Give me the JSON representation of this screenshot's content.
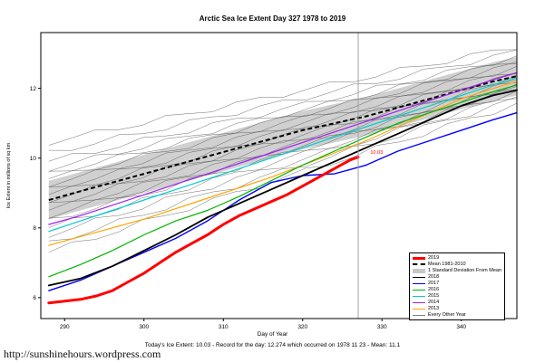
{
  "page": {
    "url_text": "http://sunshinehours.wordpress.com",
    "footer": "Today's Ice Extent: 10.03 - Record for the day: 12.274 which occurred on 1978 11 23 - Mean: 11.1"
  },
  "chart_data": {
    "type": "line",
    "title": "Arctic Sea Ice Extent Day 327 1978 to 2019",
    "xlabel": "Day of Year",
    "ylabel": "Ice Extent in millions of sq km",
    "xlim": [
      287,
      347
    ],
    "ylim": [
      5.4,
      13.6
    ],
    "x_ticks": [
      290,
      300,
      310,
      320,
      330,
      340
    ],
    "y_ticks": [
      6,
      8,
      10,
      12
    ],
    "grid": false,
    "legend_position": "bottom-right",
    "vline_x": 327,
    "annotation": {
      "text": "10.03",
      "x": 328.3,
      "y": 10.15,
      "color": "#FF0000"
    },
    "mean": {
      "label": "Mean 1981-2010",
      "color": "#000000",
      "x": [
        288,
        292,
        296,
        300,
        304,
        308,
        312,
        316,
        320,
        324,
        328,
        332,
        336,
        340,
        344,
        347
      ],
      "y": [
        8.8,
        9.05,
        9.3,
        9.55,
        9.8,
        10.05,
        10.3,
        10.55,
        10.8,
        11.0,
        11.2,
        11.45,
        11.7,
        11.95,
        12.2,
        12.35
      ]
    },
    "sd_band": {
      "label": "1 Standard Deviation From Mean",
      "halfwidth": 0.55,
      "color": "#C8C8C8"
    },
    "series": [
      {
        "name": "2013",
        "color": "#FFA500",
        "width": 1.2,
        "x": [
          288,
          292,
          296,
          300,
          304,
          308,
          312,
          316,
          320,
          324,
          328,
          332,
          336,
          340,
          344,
          347
        ],
        "y": [
          7.5,
          7.75,
          8.0,
          8.25,
          8.55,
          8.85,
          9.15,
          9.45,
          9.8,
          10.15,
          10.5,
          10.9,
          11.3,
          11.7,
          12.0,
          12.2
        ]
      },
      {
        "name": "2014",
        "color": "#A020F0",
        "width": 1.2,
        "x": [
          288,
          292,
          296,
          300,
          304,
          308,
          312,
          316,
          320,
          324,
          328,
          332,
          336,
          340,
          344,
          347
        ],
        "y": [
          8.1,
          8.35,
          8.65,
          8.95,
          9.25,
          9.55,
          9.85,
          10.15,
          10.45,
          10.75,
          11.05,
          11.35,
          11.65,
          11.95,
          12.25,
          12.45
        ]
      },
      {
        "name": "2015",
        "color": "#00CDCD",
        "width": 1.2,
        "x": [
          288,
          292,
          296,
          300,
          304,
          308,
          312,
          316,
          320,
          324,
          328,
          332,
          336,
          340,
          344,
          347
        ],
        "y": [
          7.9,
          8.2,
          8.5,
          8.8,
          9.1,
          9.4,
          9.7,
          10.0,
          10.3,
          10.6,
          10.9,
          11.2,
          11.5,
          11.8,
          12.1,
          12.3
        ]
      },
      {
        "name": "2016",
        "color": "#00B400",
        "width": 1.2,
        "x": [
          288,
          292,
          296,
          300,
          304,
          308,
          312,
          316,
          320,
          324,
          328,
          332,
          336,
          340,
          344,
          347
        ],
        "y": [
          6.6,
          6.95,
          7.35,
          7.8,
          8.2,
          8.5,
          8.9,
          9.35,
          9.8,
          10.2,
          10.6,
          11.0,
          11.3,
          11.6,
          11.9,
          12.1
        ]
      },
      {
        "name": "2017",
        "color": "#0000FF",
        "width": 1.4,
        "x": [
          288,
          292,
          296,
          300,
          304,
          308,
          312,
          316,
          320,
          324,
          328,
          332,
          336,
          340,
          344,
          347
        ],
        "y": [
          6.2,
          6.5,
          6.9,
          7.3,
          7.7,
          8.2,
          8.8,
          9.3,
          9.5,
          9.55,
          9.8,
          10.2,
          10.5,
          10.8,
          11.1,
          11.3
        ]
      },
      {
        "name": "2018",
        "color": "#000000",
        "width": 1.8,
        "x": [
          288,
          292,
          296,
          300,
          304,
          308,
          312,
          316,
          320,
          324,
          328,
          332,
          336,
          340,
          344,
          347
        ],
        "y": [
          6.35,
          6.55,
          6.9,
          7.35,
          7.8,
          8.3,
          8.7,
          9.1,
          9.5,
          9.9,
          10.3,
          10.7,
          11.1,
          11.5,
          11.8,
          11.95
        ]
      },
      {
        "name": "2019",
        "color": "#FF0000",
        "width": 3,
        "x": [
          288,
          290,
          292,
          294,
          296,
          298,
          300,
          302,
          304,
          306,
          308,
          310,
          312,
          314,
          316,
          318,
          320,
          322,
          324,
          326,
          327
        ],
        "y": [
          5.85,
          5.9,
          5.95,
          6.05,
          6.2,
          6.45,
          6.7,
          7.0,
          7.3,
          7.55,
          7.8,
          8.1,
          8.35,
          8.55,
          8.75,
          8.95,
          9.2,
          9.45,
          9.7,
          9.95,
          10.03
        ]
      }
    ],
    "gray_years": {
      "label": "Every Other Year",
      "color": "#4A4A4A",
      "lines": [
        {
          "start": 7.3,
          "end": 11.55
        },
        {
          "start": 7.55,
          "end": 11.7
        },
        {
          "start": 7.8,
          "end": 11.8
        },
        {
          "start": 8.0,
          "end": 11.9
        },
        {
          "start": 8.2,
          "end": 12.0
        },
        {
          "start": 8.35,
          "end": 12.05
        },
        {
          "start": 8.5,
          "end": 12.1
        },
        {
          "start": 8.65,
          "end": 12.2
        },
        {
          "start": 8.8,
          "end": 12.25
        },
        {
          "start": 8.95,
          "end": 12.35
        },
        {
          "start": 9.1,
          "end": 12.4
        },
        {
          "start": 9.25,
          "end": 12.5
        },
        {
          "start": 9.4,
          "end": 12.6
        },
        {
          "start": 9.55,
          "end": 12.7
        },
        {
          "start": 9.7,
          "end": 12.8
        },
        {
          "start": 9.9,
          "end": 12.9
        },
        {
          "start": 10.15,
          "end": 13.05
        },
        {
          "start": 10.45,
          "end": 13.2
        }
      ]
    },
    "legend": [
      {
        "label": "2019",
        "color": "#FF0000",
        "style": "thick"
      },
      {
        "label": "Mean 1981-2010",
        "color": "#000000",
        "style": "dashed"
      },
      {
        "label": "1 Standard Deviation From Mean",
        "color": "#C8C8C8",
        "style": "band"
      },
      {
        "label": "2018",
        "color": "#000000",
        "style": "line"
      },
      {
        "label": "2017",
        "color": "#0000FF",
        "style": "line"
      },
      {
        "label": "2016",
        "color": "#00B400",
        "style": "line"
      },
      {
        "label": "2015",
        "color": "#00CDCD",
        "style": "line"
      },
      {
        "label": "2014",
        "color": "#A020F0",
        "style": "line"
      },
      {
        "label": "2013",
        "color": "#FFA500",
        "style": "line"
      },
      {
        "label": "Every Other Year",
        "color": "#808080",
        "style": "thin"
      }
    ]
  }
}
